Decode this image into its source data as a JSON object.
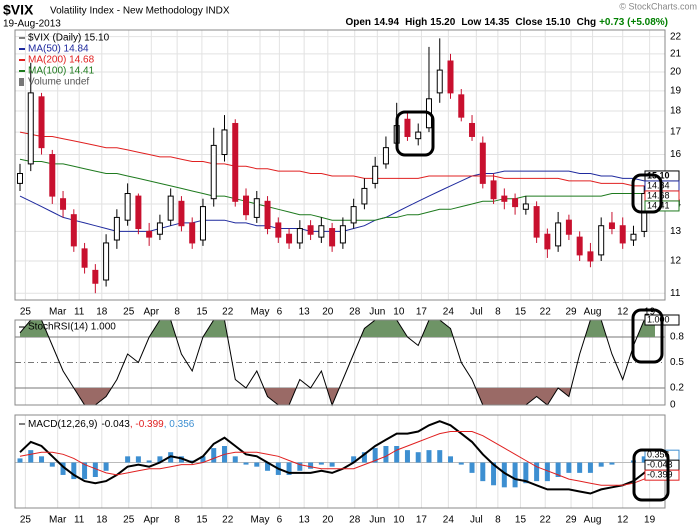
{
  "chart_data": [
    {
      "type": "candlestick",
      "title": "$VIX",
      "subtitle": "Volatility Index - New Methodology INDX",
      "date": "19-Aug-2013",
      "source": "© StockCharts.com",
      "quote": [
        {
          "label": "Open",
          "value": "14.94"
        },
        {
          "label": "High",
          "value": "15.20"
        },
        {
          "label": "Low",
          "value": "14.35"
        },
        {
          "label": "Close",
          "value": "15.10"
        },
        {
          "label": "Chg",
          "value": "+0.73 (+5.08%)",
          "color": "#008000"
        }
      ],
      "name": "$VIX (Daily) 15.10",
      "up_color": "#000000",
      "down_color": "#c8102e",
      "open": [
        14.8,
        15.6,
        18.7,
        16.0,
        14.2,
        13.6,
        12.4,
        11.7,
        11.4,
        12.7,
        13.4,
        14.3,
        13.0,
        12.9,
        13.4,
        14.1,
        13.3,
        12.7,
        14.2,
        16.0,
        17.4,
        14.3,
        13.5,
        14.1,
        13.3,
        12.9,
        12.6,
        13.2,
        12.8,
        13.1,
        12.6,
        13.3,
        14.0,
        14.8,
        15.6,
        16.5,
        17.6,
        16.7,
        17.2,
        18.9,
        20.6,
        18.8,
        17.4,
        16.5,
        14.9,
        14.3,
        14.2,
        13.8,
        13.9,
        12.9,
        12.5,
        13.4,
        12.8,
        12.3,
        12.2,
        13.3,
        13.2,
        12.7,
        13.0,
        14.5
      ],
      "high": [
        15.6,
        20.5,
        18.9,
        16.2,
        14.5,
        13.8,
        12.6,
        11.9,
        12.9,
        13.8,
        14.8,
        14.4,
        13.3,
        13.6,
        14.6,
        14.3,
        13.5,
        14.2,
        17.2,
        17.8,
        17.6,
        14.6,
        14.5,
        14.3,
        13.5,
        13.1,
        13.4,
        13.4,
        13.5,
        13.3,
        13.5,
        14.2,
        15.0,
        15.9,
        16.8,
        18.4,
        18.0,
        17.4,
        21.4,
        21.9,
        21.0,
        19.1,
        17.8,
        16.8,
        15.2,
        14.6,
        14.4,
        14.3,
        14.1,
        13.1,
        13.7,
        13.6,
        13.0,
        12.6,
        13.5,
        13.7,
        13.5,
        13.2,
        14.7,
        15.2
      ],
      "low": [
        14.5,
        15.3,
        16.0,
        14.0,
        13.5,
        12.3,
        11.6,
        11.0,
        11.2,
        12.4,
        13.2,
        12.9,
        12.5,
        12.7,
        13.2,
        13.0,
        12.4,
        12.5,
        13.9,
        15.7,
        13.9,
        13.4,
        13.3,
        12.9,
        12.6,
        12.4,
        12.4,
        12.7,
        12.6,
        12.3,
        12.4,
        13.1,
        13.8,
        14.6,
        15.4,
        16.2,
        16.6,
        16.4,
        17.0,
        18.4,
        18.6,
        17.5,
        16.6,
        14.6,
        14.0,
        13.8,
        13.6,
        13.6,
        12.6,
        12.1,
        12.3,
        12.7,
        12.0,
        11.8,
        12.0,
        12.9,
        12.4,
        12.5,
        12.8,
        14.3
      ],
      "close": [
        15.2,
        18.9,
        16.3,
        14.3,
        13.8,
        12.5,
        11.8,
        11.3,
        12.6,
        13.5,
        14.4,
        13.1,
        12.8,
        13.3,
        14.3,
        13.2,
        12.6,
        13.9,
        16.4,
        17.1,
        14.1,
        13.6,
        14.2,
        13.1,
        12.8,
        12.6,
        13.1,
        12.9,
        13.2,
        12.5,
        13.2,
        13.9,
        14.6,
        15.5,
        16.3,
        17.3,
        16.8,
        17.0,
        18.6,
        20.1,
        18.9,
        17.7,
        16.8,
        14.8,
        14.2,
        14.1,
        13.9,
        14.0,
        12.8,
        12.4,
        13.3,
        12.9,
        12.2,
        12.0,
        13.2,
        13.1,
        12.6,
        12.9,
        14.4,
        15.1
      ],
      "series": [
        {
          "name": "MA(50) 14.84",
          "color": "#1f2a9e",
          "values": [
            14.3,
            14.1,
            13.9,
            13.7,
            13.5,
            13.4,
            13.3,
            13.2,
            13.1,
            13.0,
            13.0,
            13.0,
            13.0,
            13.1,
            13.2,
            13.3,
            13.3,
            13.4,
            13.4,
            13.4,
            13.3,
            13.3,
            13.2,
            13.2,
            13.1,
            13.1,
            13.1,
            13.0,
            13.0,
            13.0,
            13.0,
            13.1,
            13.2,
            13.4,
            13.5,
            13.7,
            13.9,
            14.1,
            14.3,
            14.5,
            14.7,
            14.9,
            15.1,
            15.2,
            15.2,
            15.3,
            15.3,
            15.3,
            15.3,
            15.3,
            15.3,
            15.3,
            15.2,
            15.2,
            15.1,
            15.1,
            15.0,
            15.0,
            14.9,
            14.84
          ]
        },
        {
          "name": "MA(200) 14.68",
          "color": "#e02020",
          "values": [
            17.0,
            16.9,
            16.8,
            16.8,
            16.7,
            16.6,
            16.5,
            16.4,
            16.3,
            16.3,
            16.2,
            16.1,
            16.0,
            15.9,
            15.9,
            15.8,
            15.7,
            15.7,
            15.6,
            15.6,
            15.5,
            15.5,
            15.4,
            15.4,
            15.3,
            15.3,
            15.3,
            15.2,
            15.2,
            15.1,
            15.1,
            15.1,
            15.0,
            15.0,
            15.0,
            15.0,
            15.0,
            15.0,
            15.1,
            15.1,
            15.1,
            15.1,
            15.1,
            15.1,
            15.1,
            15.0,
            15.0,
            15.0,
            15.0,
            15.0,
            15.0,
            14.9,
            14.9,
            14.9,
            14.8,
            14.8,
            14.8,
            14.7,
            14.7,
            14.68
          ]
        },
        {
          "name": "MA(100) 14.41",
          "color": "#1e7a1e",
          "values": [
            15.8,
            15.7,
            15.7,
            15.6,
            15.6,
            15.5,
            15.4,
            15.3,
            15.2,
            15.2,
            15.1,
            15.0,
            14.9,
            14.8,
            14.7,
            14.6,
            14.5,
            14.4,
            14.3,
            14.3,
            14.2,
            14.1,
            14.0,
            13.9,
            13.8,
            13.7,
            13.6,
            13.6,
            13.5,
            13.4,
            13.4,
            13.4,
            13.4,
            13.4,
            13.5,
            13.5,
            13.6,
            13.6,
            13.7,
            13.8,
            13.8,
            13.9,
            14.0,
            14.1,
            14.1,
            14.2,
            14.2,
            14.3,
            14.3,
            14.3,
            14.3,
            14.3,
            14.3,
            14.3,
            14.3,
            14.4,
            14.4,
            14.4,
            14.4,
            14.41
          ]
        }
      ],
      "legend_extra": "Volume undef",
      "log": true,
      "ylim": [
        10.8,
        22.4
      ],
      "yticks": [
        11,
        12,
        13,
        14,
        16,
        17,
        18,
        19,
        20,
        21,
        22
      ],
      "grid": true,
      "xticks": [
        {
          "value": 0.5,
          "label": "25"
        },
        {
          "value": 3.5,
          "label": "Mar"
        },
        {
          "value": 5.5,
          "label": "11"
        },
        {
          "value": 7.6,
          "label": "18"
        },
        {
          "value": 10.1,
          "label": "25"
        },
        {
          "value": 12.2,
          "label": "Apr"
        },
        {
          "value": 14.6,
          "label": "8"
        },
        {
          "value": 16.9,
          "label": "15"
        },
        {
          "value": 19.3,
          "label": "22"
        },
        {
          "value": 22.3,
          "label": "May"
        },
        {
          "value": 24.1,
          "label": "6"
        },
        {
          "value": 26.4,
          "label": "13"
        },
        {
          "value": 28.6,
          "label": "20"
        },
        {
          "value": 31.1,
          "label": "28"
        },
        {
          "value": 33.2,
          "label": "Jun"
        },
        {
          "value": 35.2,
          "label": "10"
        },
        {
          "value": 37.3,
          "label": "17"
        },
        {
          "value": 39.8,
          "label": "24"
        },
        {
          "value": 42.4,
          "label": "Jul"
        },
        {
          "value": 44.4,
          "label": "8"
        },
        {
          "value": 46.5,
          "label": "15"
        },
        {
          "value": 48.8,
          "label": "22"
        },
        {
          "value": 51.2,
          "label": "29"
        },
        {
          "value": 53.2,
          "label": "Aug"
        },
        {
          "value": 56,
          "label": "12"
        },
        {
          "value": 58.5,
          "label": "19"
        }
      ],
      "last_labels": [
        {
          "value": 15.1,
          "label": "15.10",
          "color": "#000000"
        },
        {
          "value": 14.84,
          "label": "14.84",
          "color": "#1f2a9e"
        },
        {
          "value": 14.68,
          "label": "14.68",
          "color": "#e02020"
        },
        {
          "value": 14.41,
          "label": "14.41",
          "color": "#1e7a1e"
        }
      ]
    },
    {
      "type": "line",
      "title": "StochRSI(14) 1.000",
      "color": "#000000",
      "values": [
        0.85,
        1,
        1,
        0.7,
        0.4,
        0.2,
        0,
        0,
        0.1,
        0.3,
        0.6,
        0.5,
        0.8,
        1,
        1,
        0.6,
        0.4,
        0.8,
        1,
        1,
        0.3,
        0.2,
        0.4,
        0.1,
        0,
        0,
        0.3,
        0.2,
        0.4,
        0,
        0.3,
        0.6,
        0.9,
        1,
        1,
        1,
        0.8,
        0.7,
        1,
        1,
        0.9,
        0.5,
        0.3,
        0,
        0,
        0,
        0,
        0,
        0.1,
        0,
        0.2,
        0.1,
        0.6,
        1,
        1,
        0.6,
        0.3,
        0.7,
        1,
        1
      ],
      "ylim": [
        0,
        1
      ],
      "yticks": [
        0,
        0.2,
        0.5,
        0.8
      ],
      "fill_above": 0.8,
      "fill_below": 0.2,
      "above_color": "#6e9466",
      "below_color": "#9a6a66",
      "last_labels": [
        {
          "value": 1,
          "label": "1.000",
          "color": "#000000"
        }
      ]
    },
    {
      "type": "macd",
      "title": "MACD(12,26,9)",
      "series": [
        {
          "name": "-0.043",
          "color": "#000000",
          "values": [
            0.5,
            1.0,
            0.8,
            0.3,
            -0.2,
            -0.6,
            -0.9,
            -1.0,
            -0.9,
            -0.6,
            -0.2,
            -0.1,
            -0.2,
            0.0,
            0.3,
            0.2,
            0.0,
            0.3,
            0.9,
            1.2,
            0.8,
            0.4,
            0.3,
            0.0,
            -0.3,
            -0.5,
            -0.5,
            -0.5,
            -0.4,
            -0.5,
            -0.3,
            0.0,
            0.4,
            0.8,
            1.1,
            1.4,
            1.4,
            1.5,
            1.8,
            2.0,
            1.8,
            1.4,
            1.0,
            0.4,
            -0.1,
            -0.5,
            -0.8,
            -0.9,
            -1.1,
            -1.3,
            -1.3,
            -1.3,
            -1.4,
            -1.5,
            -1.3,
            -1.2,
            -1.1,
            -0.9,
            -0.5,
            -0.043
          ]
        },
        {
          "name": ", -0.399",
          "color": "#e02020",
          "values": [
            0.3,
            0.4,
            0.5,
            0.5,
            0.4,
            0.2,
            -0.1,
            -0.3,
            -0.5,
            -0.6,
            -0.5,
            -0.4,
            -0.3,
            -0.3,
            -0.2,
            -0.1,
            -0.1,
            0.0,
            0.2,
            0.4,
            0.5,
            0.5,
            0.5,
            0.4,
            0.3,
            0.1,
            -0.1,
            -0.2,
            -0.3,
            -0.3,
            -0.3,
            -0.3,
            -0.1,
            0.1,
            0.3,
            0.6,
            0.8,
            1.0,
            1.2,
            1.4,
            1.5,
            1.5,
            1.5,
            1.3,
            1.0,
            0.7,
            0.4,
            0.1,
            -0.2,
            -0.4,
            -0.6,
            -0.8,
            -0.9,
            -1.0,
            -1.1,
            -1.1,
            -1.1,
            -1.0,
            -0.8,
            -0.399
          ]
        },
        {
          "name": ", 0.356",
          "color": "#3d8fd1",
          "kind": "bar",
          "values": [
            0.2,
            0.6,
            0.3,
            -0.2,
            -0.6,
            -0.8,
            -0.8,
            -0.7,
            -0.4,
            0.0,
            0.3,
            0.3,
            0.1,
            0.3,
            0.5,
            0.3,
            0.1,
            0.3,
            0.7,
            0.8,
            0.3,
            -0.1,
            -0.2,
            -0.4,
            -0.6,
            -0.6,
            -0.4,
            -0.3,
            -0.1,
            -0.2,
            0.0,
            0.3,
            0.5,
            0.7,
            0.8,
            0.8,
            0.6,
            0.5,
            0.6,
            0.6,
            0.3,
            -0.1,
            -0.5,
            -0.9,
            -1.1,
            -1.2,
            -1.2,
            -1.0,
            -0.9,
            -0.9,
            -0.7,
            -0.5,
            -0.5,
            -0.5,
            -0.2,
            -0.1,
            0.0,
            0.1,
            0.3,
            0.356
          ]
        }
      ],
      "ylim": [
        -2.2,
        2.3
      ],
      "last_labels": [
        {
          "value": 0.356,
          "label": "0.356",
          "color": "#3d8fd1"
        },
        {
          "value": -0.043,
          "label": "-0.043",
          "color": "#000000"
        },
        {
          "value": -0.399,
          "label": "-0.399",
          "color": "#e02020"
        }
      ]
    }
  ]
}
